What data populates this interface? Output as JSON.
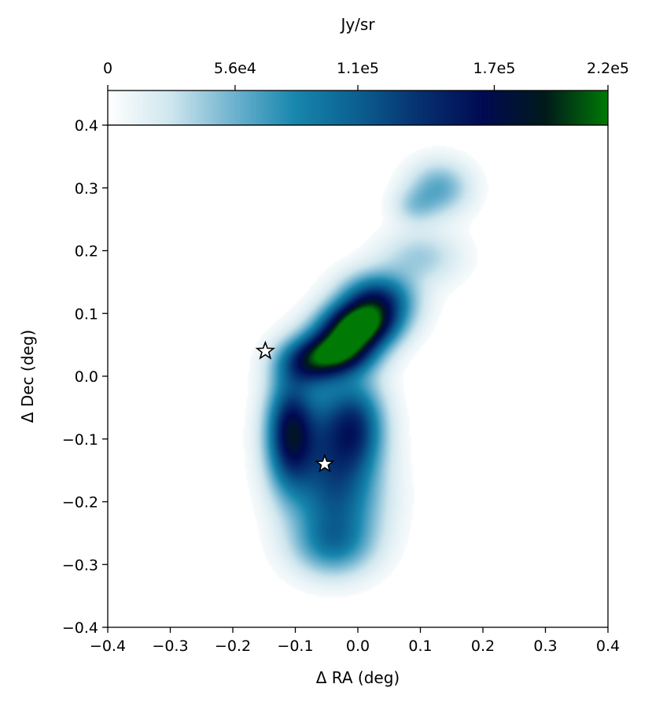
{
  "chart_data": {
    "type": "heatmap",
    "title": "",
    "xlabel": "Δ RA (deg)",
    "ylabel": "Δ Dec (deg)",
    "xlim": [
      -0.4,
      0.4
    ],
    "ylim": [
      -0.4,
      0.4
    ],
    "x_ticks": [
      -0.4,
      -0.3,
      -0.2,
      -0.1,
      0.0,
      0.1,
      0.2,
      0.3,
      0.4
    ],
    "x_tick_labels": [
      "−0.4",
      "−0.3",
      "−0.2",
      "−0.1",
      "0.0",
      "0.1",
      "0.2",
      "0.3",
      "0.4"
    ],
    "y_ticks": [
      0.4,
      0.3,
      0.2,
      0.1,
      0.0,
      -0.1,
      -0.2,
      -0.3,
      -0.4
    ],
    "y_tick_labels": [
      "0.4",
      "0.3",
      "0.2",
      "0.1",
      "0.0",
      "−0.1",
      "−0.2",
      "−0.3",
      "−0.4"
    ],
    "colorbar": {
      "label": "Jy/sr",
      "location": "top",
      "range": [
        0,
        220000
      ],
      "ticks": [
        0,
        56000,
        110000,
        170000,
        220000
      ],
      "tick_labels": [
        "0",
        "5.6e4",
        "1.1e5",
        "1.7e5",
        "2.2e5"
      ],
      "colors": [
        "#ffffff",
        "#cfe6ee",
        "#6fb3cf",
        "#1786ad",
        "#0b5f90",
        "#06306f",
        "#000a52",
        "#001a1a",
        "#007a05"
      ]
    },
    "emission": [
      {
        "name": "northern-clump",
        "x": 0.13,
        "y": 0.3,
        "sx": 0.035,
        "sy": 0.03,
        "peak": 60000
      },
      {
        "name": "northern-clump-tail",
        "x": 0.09,
        "y": 0.27,
        "sx": 0.025,
        "sy": 0.02,
        "peak": 30000
      },
      {
        "name": "bridge",
        "x": 0.1,
        "y": 0.19,
        "sx": 0.045,
        "sy": 0.03,
        "peak": 40000
      },
      {
        "name": "filament-1",
        "x": 0.03,
        "y": 0.12,
        "sx": 0.04,
        "sy": 0.03,
        "peak": 140000
      },
      {
        "name": "filament-2",
        "x": 0.0,
        "y": 0.08,
        "sx": 0.04,
        "sy": 0.025,
        "peak": 190000
      },
      {
        "name": "filament-3",
        "x": -0.03,
        "y": 0.04,
        "sx": 0.04,
        "sy": 0.025,
        "peak": 175000
      },
      {
        "name": "filament-base",
        "x": -0.08,
        "y": 0.02,
        "sx": 0.035,
        "sy": 0.025,
        "peak": 100000
      },
      {
        "name": "western-knot",
        "x": -0.11,
        "y": -0.09,
        "sx": 0.025,
        "sy": 0.06,
        "peak": 130000
      },
      {
        "name": "central-clump",
        "x": -0.05,
        "y": -0.1,
        "sx": 0.05,
        "sy": 0.07,
        "peak": 105000
      },
      {
        "name": "eastern-lobe",
        "x": 0.0,
        "y": -0.08,
        "sx": 0.03,
        "sy": 0.05,
        "peak": 85000
      },
      {
        "name": "southern-lobe-1",
        "x": -0.03,
        "y": -0.2,
        "sx": 0.05,
        "sy": 0.05,
        "peak": 70000
      },
      {
        "name": "southern-lobe-2",
        "x": -0.04,
        "y": -0.27,
        "sx": 0.045,
        "sy": 0.035,
        "peak": 70000
      }
    ],
    "markers": [
      {
        "name": "star-marker-north",
        "x": -0.148,
        "y": 0.04,
        "symbol": "star"
      },
      {
        "name": "star-marker-south",
        "x": -0.053,
        "y": -0.14,
        "symbol": "star"
      }
    ]
  }
}
